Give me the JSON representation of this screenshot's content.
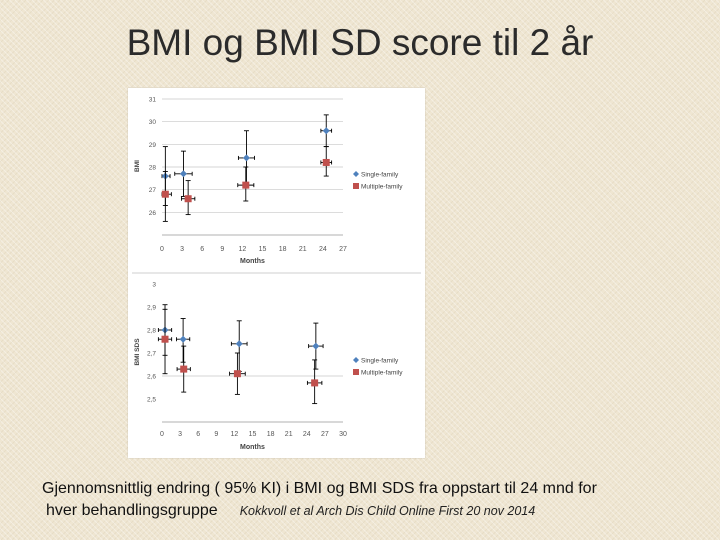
{
  "slide": {
    "title": "BMI og BMI SD score til 2 år",
    "caption_line1": "Gjennomsnittlig endring ( 95% KI) i BMI og BMI SDS fra oppstart til  24 mnd for",
    "caption_line2": "hver behandlingsgruppe",
    "citation": "Kokkvoll et al Arch Dis Child Online First 20 nov 2014"
  },
  "colors": {
    "single_family": "#4f81bd",
    "multiple_family": "#c0504d",
    "grid": "#c8c8c8",
    "axis_text": "#555555"
  },
  "chart_data": [
    {
      "type": "scatter",
      "ylabel": "BMI",
      "xlabel": "Months",
      "xlim": [
        0,
        27
      ],
      "ylim": [
        25,
        31
      ],
      "xticks": [
        "0",
        "3",
        "6",
        "9",
        "12",
        "15",
        "18",
        "21",
        "24",
        "27"
      ],
      "xtick_values": [
        0,
        3,
        6,
        9,
        12,
        15,
        18,
        21,
        24,
        27
      ],
      "yticks": [
        "26",
        "27",
        "28",
        "29",
        "30",
        "31"
      ],
      "ytick_values": [
        26,
        27,
        28,
        29,
        30,
        31
      ],
      "ygrid": [
        26,
        27,
        28,
        29,
        30,
        31
      ],
      "legend_position": "right",
      "series": [
        {
          "name": "Single-family",
          "marker": "diamond",
          "points": [
            {
              "x": 0.5,
              "y": 27.6,
              "ylo": 26.3,
              "yhi": 28.9,
              "xlo": 0.0,
              "xhi": 1.2
            },
            {
              "x": 3.2,
              "y": 27.7,
              "ylo": 26.7,
              "yhi": 28.7,
              "xlo": 1.9,
              "xhi": 4.5
            },
            {
              "x": 12.6,
              "y": 28.4,
              "ylo": 27.2,
              "yhi": 29.6,
              "xlo": 11.4,
              "xhi": 13.8
            },
            {
              "x": 24.5,
              "y": 29.6,
              "ylo": 28.9,
              "yhi": 30.3,
              "xlo": 23.7,
              "xhi": 25.3
            }
          ]
        },
        {
          "name": "Multiple-family",
          "marker": "square",
          "points": [
            {
              "x": 0.5,
              "y": 26.8,
              "ylo": 25.6,
              "yhi": 27.8,
              "xlo": 0.0,
              "xhi": 1.4
            },
            {
              "x": 3.9,
              "y": 26.6,
              "ylo": 25.9,
              "yhi": 27.4,
              "xlo": 2.9,
              "xhi": 4.9
            },
            {
              "x": 12.5,
              "y": 27.2,
              "ylo": 26.5,
              "yhi": 28.0,
              "xlo": 11.3,
              "xhi": 13.7
            },
            {
              "x": 24.5,
              "y": 28.2,
              "ylo": 27.6,
              "yhi": 28.9,
              "xlo": 23.7,
              "xhi": 25.3
            }
          ]
        }
      ]
    },
    {
      "type": "scatter",
      "ylabel": "BMI SDS",
      "xlabel": "Months",
      "xlim": [
        0,
        30
      ],
      "ylim": [
        2.4,
        3.0
      ],
      "xticks": [
        "0",
        "3",
        "6",
        "9",
        "12",
        "15",
        "18",
        "21",
        "24",
        "27",
        "30"
      ],
      "xtick_values": [
        0,
        3,
        6,
        9,
        12,
        15,
        18,
        21,
        24,
        27,
        30
      ],
      "yticks": [
        "2,5",
        "2,6",
        "2,7",
        "2,8",
        "2,9",
        "3"
      ],
      "ytick_values": [
        2.5,
        2.6,
        2.7,
        2.8,
        2.9,
        3.0
      ],
      "ygrid": [
        2.6
      ],
      "legend_position": "right",
      "series": [
        {
          "name": "Single-family",
          "marker": "diamond",
          "points": [
            {
              "x": 0.5,
              "y": 2.8,
              "ylo": 2.69,
              "yhi": 2.91,
              "xlo": -0.6,
              "xhi": 1.6
            },
            {
              "x": 3.5,
              "y": 2.76,
              "ylo": 2.66,
              "yhi": 2.85,
              "xlo": 2.4,
              "xhi": 4.6
            },
            {
              "x": 12.8,
              "y": 2.74,
              "ylo": 2.62,
              "yhi": 2.84,
              "xlo": 11.5,
              "xhi": 14.1
            },
            {
              "x": 25.5,
              "y": 2.73,
              "ylo": 2.63,
              "yhi": 2.83,
              "xlo": 24.3,
              "xhi": 26.7
            }
          ]
        },
        {
          "name": "Multiple-family",
          "marker": "square",
          "points": [
            {
              "x": 0.5,
              "y": 2.76,
              "ylo": 2.61,
              "yhi": 2.89,
              "xlo": -0.6,
              "xhi": 1.6
            },
            {
              "x": 3.6,
              "y": 2.63,
              "ylo": 2.53,
              "yhi": 2.73,
              "xlo": 2.5,
              "xhi": 4.7
            },
            {
              "x": 12.5,
              "y": 2.61,
              "ylo": 2.52,
              "yhi": 2.7,
              "xlo": 11.2,
              "xhi": 13.8
            },
            {
              "x": 25.3,
              "y": 2.57,
              "ylo": 2.48,
              "yhi": 2.67,
              "xlo": 24.1,
              "xhi": 26.5
            }
          ]
        }
      ]
    }
  ]
}
